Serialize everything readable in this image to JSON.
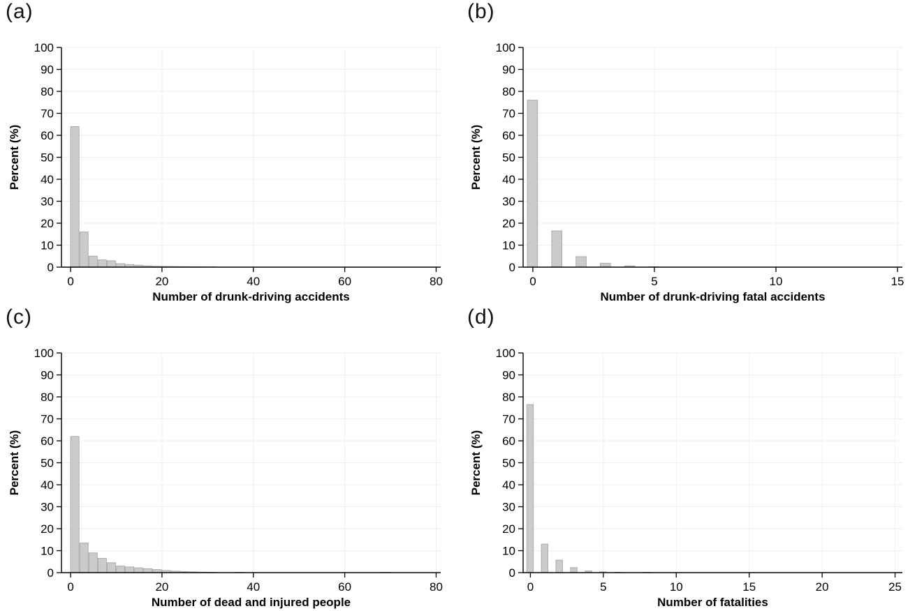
{
  "style": {
    "background": "#ffffff",
    "bar_fill": "#cbcbcb",
    "bar_stroke": "#a0a0a0",
    "axis_color": "#000000",
    "grid_color": "#edf0f1",
    "text_color": "#000000"
  },
  "chart_data": [
    {
      "type": "bar",
      "panel_label": "(a)",
      "title": "",
      "xlabel": "Number of drunk-driving accidents",
      "ylabel": "Percent (%)",
      "ylim": [
        0,
        100
      ],
      "yticks": [
        0,
        10,
        20,
        30,
        40,
        50,
        60,
        70,
        80,
        90,
        100
      ],
      "xticks": [
        0,
        20,
        40,
        60,
        80
      ],
      "xdomain": [
        -2,
        81
      ],
      "grid": true,
      "legend": "none",
      "bars": {
        "mode": "edge",
        "width": 2,
        "x": [
          0,
          2,
          4,
          6,
          8,
          10,
          12,
          14,
          16,
          18,
          20,
          22,
          24,
          26,
          28,
          30
        ],
        "values": [
          64,
          16,
          5,
          3.3,
          2.9,
          1.6,
          1.2,
          0.9,
          0.6,
          0.4,
          0.35,
          0.3,
          0.25,
          0.2,
          0.15,
          0.1
        ]
      }
    },
    {
      "type": "bar",
      "panel_label": "(b)",
      "title": "",
      "xlabel": "Number of drunk-driving fatal accidents",
      "ylabel": "Percent (%)",
      "ylim": [
        0,
        100
      ],
      "yticks": [
        0,
        10,
        20,
        30,
        40,
        50,
        60,
        70,
        80,
        90,
        100
      ],
      "xticks": [
        0,
        5,
        10,
        15
      ],
      "xdomain": [
        -0.4,
        15.2
      ],
      "grid": true,
      "legend": "none",
      "bars": {
        "mode": "center",
        "width": 0.45,
        "x": [
          0,
          1,
          2,
          3,
          4,
          5
        ],
        "values": [
          76,
          16.5,
          4.8,
          1.8,
          0.6,
          0.2
        ]
      }
    },
    {
      "type": "bar",
      "panel_label": "(c)",
      "title": "",
      "xlabel": "Number of dead and injured people",
      "ylabel": "Percent (%)",
      "ylim": [
        0,
        100
      ],
      "yticks": [
        0,
        10,
        20,
        30,
        40,
        50,
        60,
        70,
        80,
        90,
        100
      ],
      "xticks": [
        0,
        20,
        40,
        60,
        80
      ],
      "xdomain": [
        -2,
        81
      ],
      "grid": true,
      "legend": "none",
      "bars": {
        "mode": "edge",
        "width": 2,
        "x": [
          0,
          2,
          4,
          6,
          8,
          10,
          12,
          14,
          16,
          18,
          20,
          22,
          24,
          26,
          28,
          30,
          36,
          68
        ],
        "values": [
          62,
          13.5,
          9,
          6.5,
          4.5,
          3,
          2.6,
          2.2,
          1.8,
          1.4,
          1,
          0.7,
          0.5,
          0.35,
          0.25,
          0.2,
          0.12,
          0.15
        ]
      }
    },
    {
      "type": "bar",
      "panel_label": "(d)",
      "title": "",
      "xlabel": "Number of fatalities",
      "ylabel": "Percent (%)",
      "ylim": [
        0,
        100
      ],
      "yticks": [
        0,
        10,
        20,
        30,
        40,
        50,
        60,
        70,
        80,
        90,
        100
      ],
      "xticks": [
        0,
        5,
        10,
        15,
        20,
        25
      ],
      "xdomain": [
        -0.5,
        25.5
      ],
      "grid": true,
      "legend": "none",
      "bars": {
        "mode": "center",
        "width": 0.5,
        "x": [
          0,
          1,
          2,
          3,
          4,
          5,
          6,
          8
        ],
        "values": [
          76.5,
          13,
          5.7,
          2.3,
          0.8,
          0.4,
          0.2,
          0.15
        ]
      }
    }
  ]
}
